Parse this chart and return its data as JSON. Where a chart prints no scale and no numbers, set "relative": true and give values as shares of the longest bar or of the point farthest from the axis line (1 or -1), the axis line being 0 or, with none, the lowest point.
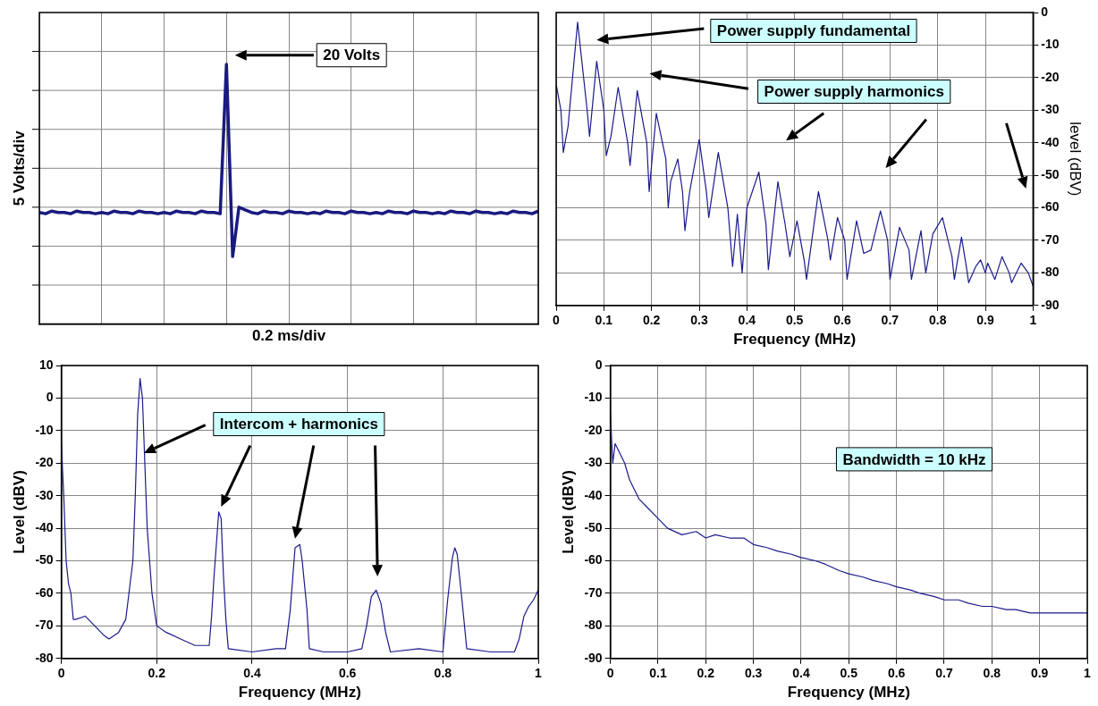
{
  "chart_data": [
    {
      "type": "line",
      "relative": true,
      "xlabel": "0.2 ms/div",
      "ylabel": "5 Volts/div",
      "grid": true,
      "categories": [
        null,
        null,
        null,
        null,
        null,
        null,
        null,
        null,
        null,
        null,
        null,
        null,
        null,
        null,
        null,
        null,
        null,
        null,
        null,
        null,
        null,
        null,
        null,
        null,
        null,
        null,
        null,
        null,
        null,
        null,
        null,
        null,
        null,
        null,
        null,
        null,
        null,
        null,
        null,
        null,
        null,
        null,
        null,
        null,
        null,
        null,
        null,
        null,
        null,
        null,
        null,
        null,
        null,
        null,
        null,
        null,
        null,
        null,
        null,
        null,
        null,
        null,
        null,
        null,
        null,
        null,
        null,
        null,
        null,
        null,
        null,
        null,
        null,
        null,
        null,
        null,
        null,
        null,
        null,
        null,
        null
      ],
      "series": [
        {
          "color": "#1a1a80",
          "values": [
            0.43,
            0.425,
            0.435,
            0.43,
            0.43,
            0.425,
            0.435,
            0.43,
            0.43,
            0.425,
            0.43,
            0.425,
            0.435,
            0.43,
            0.43,
            0.425,
            0.435,
            0.43,
            0.43,
            0.425,
            0.43,
            0.425,
            0.435,
            0.43,
            0.43,
            0.425,
            0.435,
            0.43,
            0.43,
            0.425,
            1,
            0.26,
            0.45,
            0.44,
            0.43,
            0.425,
            0.435,
            0.43,
            0.43,
            0.425,
            0.435,
            0.43,
            0.43,
            0.425,
            0.43,
            0.425,
            0.435,
            0.43,
            0.43,
            0.425,
            0.435,
            0.43,
            0.43,
            0.425,
            0.43,
            0.425,
            0.435,
            0.43,
            0.43,
            0.425,
            0.435,
            0.43,
            0.43,
            0.425,
            0.43,
            0.425,
            0.435,
            0.43,
            0.43,
            0.425,
            0.435,
            0.43,
            0.43,
            0.425,
            0.43,
            0.425,
            0.435,
            0.43,
            0.43,
            0.425,
            0.435
          ]
        }
      ],
      "annotations": [
        "20 Volts"
      ]
    },
    {
      "type": "line",
      "xlabel": "Frequency (MHz)",
      "y2label": "level (dBV)",
      "grid": true,
      "x": [
        0,
        0.01,
        0.015,
        0.025,
        0.045,
        0.065,
        0.07,
        0.085,
        0.1,
        0.105,
        0.115,
        0.13,
        0.15,
        0.155,
        0.17,
        0.19,
        0.195,
        0.21,
        0.23,
        0.235,
        0.24,
        0.255,
        0.265,
        0.27,
        0.28,
        0.3,
        0.315,
        0.32,
        0.34,
        0.36,
        0.37,
        0.38,
        0.39,
        0.4,
        0.425,
        0.44,
        0.445,
        0.465,
        0.48,
        0.49,
        0.505,
        0.52,
        0.525,
        0.55,
        0.57,
        0.575,
        0.59,
        0.605,
        0.61,
        0.63,
        0.645,
        0.66,
        0.68,
        0.695,
        0.7,
        0.72,
        0.74,
        0.745,
        0.765,
        0.775,
        0.79,
        0.81,
        0.83,
        0.835,
        0.85,
        0.86,
        0.865,
        0.88,
        0.89,
        0.9,
        0.905,
        0.92,
        0.935,
        0.95,
        0.955,
        0.975,
        0.99,
        1
      ],
      "series": [
        {
          "color": "#1a1a8c",
          "axis": "y2",
          "values": [
            -22,
            -30,
            -43,
            -35,
            -3,
            -30,
            -38,
            -15,
            -30,
            -44,
            -38,
            -23,
            -40,
            -47,
            -24,
            -40,
            -55,
            -31,
            -45,
            -60,
            -52,
            -45,
            -55,
            -67,
            -55,
            -39,
            -55,
            -63,
            -43,
            -60,
            -78,
            -62,
            -80,
            -60,
            -49,
            -65,
            -79,
            -52,
            -65,
            -75,
            -64,
            -76,
            -82,
            -55,
            -70,
            -76,
            -63,
            -70,
            -82,
            -64,
            -74,
            -73,
            -61,
            -70,
            -82,
            -66,
            -73,
            -82,
            -67,
            -80,
            -68,
            -63,
            -75,
            -82,
            -69,
            -78,
            -83,
            -78,
            -76,
            -80,
            -77,
            -82,
            -75,
            -80,
            -83,
            -77,
            -80,
            -84
          ]
        }
      ],
      "xlim": [
        0,
        1
      ],
      "xticks": [
        0,
        0.1,
        0.2,
        0.3,
        0.4,
        0.5,
        0.6,
        0.7,
        0.8,
        0.9,
        1
      ],
      "y2lim": [
        -90,
        0
      ],
      "y2ticks": [
        -90,
        -80,
        -70,
        -60,
        -50,
        -40,
        -30,
        -20,
        -10,
        0
      ],
      "annotations": [
        "Power supply fundamental",
        "Power supply harmonics"
      ]
    },
    {
      "type": "line",
      "xlabel": "Frequency (MHz)",
      "ylabel": "Level (dBV)",
      "grid": true,
      "x": [
        0,
        0.005,
        0.01,
        0.015,
        0.02,
        0.025,
        0.03,
        0.05,
        0.07,
        0.09,
        0.1,
        0.12,
        0.135,
        0.14,
        0.15,
        0.155,
        0.16,
        0.165,
        0.17,
        0.175,
        0.18,
        0.19,
        0.2,
        0.22,
        0.25,
        0.28,
        0.31,
        0.315,
        0.32,
        0.33,
        0.335,
        0.34,
        0.345,
        0.35,
        0.4,
        0.45,
        0.47,
        0.48,
        0.49,
        0.5,
        0.505,
        0.515,
        0.52,
        0.55,
        0.6,
        0.63,
        0.64,
        0.65,
        0.66,
        0.67,
        0.68,
        0.69,
        0.75,
        0.8,
        0.81,
        0.82,
        0.825,
        0.83,
        0.84,
        0.85,
        0.9,
        0.95,
        0.96,
        0.97,
        0.98,
        0.99,
        1
      ],
      "series": [
        {
          "color": "#1a1a8c",
          "values": [
            -14,
            -30,
            -50,
            -57,
            -60,
            -68,
            -68,
            -67,
            -70,
            -73,
            -74,
            -72,
            -68,
            -62,
            -50,
            -30,
            -5,
            6,
            0,
            -20,
            -40,
            -60,
            -70,
            -72,
            -74,
            -76,
            -76,
            -67,
            -55,
            -35,
            -37,
            -55,
            -68,
            -77,
            -78,
            -77,
            -77,
            -65,
            -46,
            -45,
            -50,
            -65,
            -77,
            -78,
            -78,
            -77,
            -70,
            -61,
            -59,
            -63,
            -72,
            -78,
            -77,
            -78,
            -62,
            -49,
            -46,
            -48,
            -62,
            -77,
            -78,
            -78,
            -74,
            -67,
            -64,
            -62,
            -59
          ]
        }
      ],
      "xlim": [
        0,
        1
      ],
      "xticks": [
        0,
        0.2,
        0.4,
        0.6,
        0.8,
        1
      ],
      "ylim": [
        -80,
        10
      ],
      "yticks": [
        -80,
        -70,
        -60,
        -50,
        -40,
        -30,
        -20,
        -10,
        0,
        10
      ],
      "annotations": [
        "Intercom + harmonics"
      ]
    },
    {
      "type": "line",
      "xlabel": "Frequency (MHz)",
      "ylabel": "Level (dBV)",
      "grid": true,
      "x": [
        0,
        0.005,
        0.01,
        0.02,
        0.03,
        0.04,
        0.05,
        0.06,
        0.08,
        0.1,
        0.12,
        0.15,
        0.18,
        0.2,
        0.22,
        0.25,
        0.28,
        0.3,
        0.33,
        0.35,
        0.38,
        0.4,
        0.43,
        0.45,
        0.48,
        0.5,
        0.53,
        0.55,
        0.58,
        0.6,
        0.63,
        0.65,
        0.68,
        0.7,
        0.73,
        0.75,
        0.78,
        0.8,
        0.83,
        0.85,
        0.88,
        0.9,
        0.93,
        0.95,
        0.98,
        1
      ],
      "series": [
        {
          "color": "#1a1a8c",
          "values": [
            -15,
            -30,
            -24,
            -27,
            -30,
            -35,
            -38,
            -41,
            -44,
            -47,
            -50,
            -52,
            -51,
            -53,
            -52,
            -53,
            -53,
            -55,
            -56,
            -57,
            -58,
            -59,
            -60,
            -61,
            -63,
            -64,
            -65,
            -66,
            -67,
            -68,
            -69,
            -70,
            -71,
            -72,
            -72,
            -73,
            -74,
            -74,
            -75,
            -75,
            -76,
            -76,
            -76,
            -76,
            -76,
            -76
          ]
        }
      ],
      "xlim": [
        0,
        1
      ],
      "xticks": [
        0,
        0.1,
        0.2,
        0.3,
        0.4,
        0.5,
        0.6,
        0.7,
        0.8,
        0.9,
        1
      ],
      "ylim": [
        -90,
        0
      ],
      "yticks": [
        -90,
        -80,
        -70,
        -60,
        -50,
        -40,
        -30,
        -20,
        -10,
        0
      ],
      "annotations": [
        "Bandwidth = 10 kHz"
      ]
    }
  ]
}
